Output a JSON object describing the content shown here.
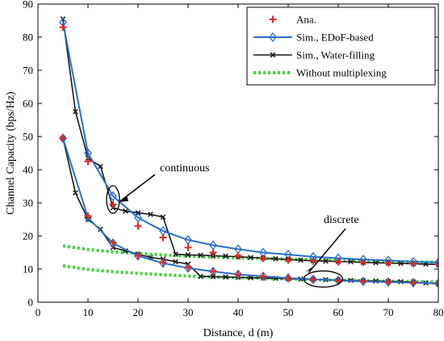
{
  "chart_data": {
    "type": "line",
    "xlabel": "Distance, d (m)",
    "ylabel": "Channel Capacity (bps/Hz)",
    "xlim": [
      0,
      80
    ],
    "ylim": [
      0,
      90
    ],
    "xticks": [
      0,
      10,
      20,
      30,
      40,
      50,
      60,
      70,
      80
    ],
    "yticks": [
      0,
      10,
      20,
      30,
      40,
      50,
      60,
      70,
      80,
      90
    ],
    "grid": false,
    "legend_position": "top-right",
    "legend": [
      "Ana.",
      "Sim., EDoF-based",
      "Sim., Water-filling",
      "Without multiplexing"
    ],
    "annotations": [
      {
        "text": "continuous",
        "target": [
          15,
          31
        ]
      },
      {
        "text": "discrete",
        "target": [
          57,
          7
        ]
      }
    ],
    "series": [
      {
        "name": "Ana.",
        "legend_index": 0,
        "style": "plus",
        "color": "#e8281e",
        "x": [
          5,
          10,
          15,
          20,
          25,
          30,
          35,
          40,
          45,
          50,
          55,
          60,
          65,
          70,
          75,
          80
        ],
        "y": [
          83,
          42.5,
          29.5,
          23,
          19.5,
          16.5,
          15,
          14,
          13.2,
          12.7,
          12.4,
          12.2,
          12,
          11.8,
          11.6,
          11.4
        ]
      },
      {
        "style": "plus",
        "color": "#e8281e",
        "x": [
          5,
          10,
          15,
          20,
          25,
          30,
          35,
          40,
          45,
          50,
          55,
          60,
          65,
          70,
          75,
          80
        ],
        "y": [
          49.5,
          26,
          18,
          14,
          12,
          10.5,
          9.3,
          8.4,
          7.8,
          7.2,
          6.8,
          6.5,
          6.3,
          6.1,
          5.9,
          5.7
        ]
      },
      {
        "name": "Sim., EDoF-based",
        "legend_index": 1,
        "style": "diamond-line",
        "color": "#2a6fc9",
        "x": [
          5,
          10,
          15,
          20,
          25,
          30,
          35,
          40,
          45,
          50,
          55,
          60,
          65,
          70,
          75,
          80
        ],
        "y": [
          84.5,
          45,
          32,
          25.5,
          21.5,
          18.8,
          17.2,
          16,
          15,
          14.4,
          13.7,
          13.3,
          12.9,
          12.6,
          12.2,
          12
        ]
      },
      {
        "style": "diamond-line",
        "color": "#2a6fc9",
        "x": [
          5,
          10,
          15,
          20,
          25,
          30,
          35,
          40,
          45,
          50,
          55,
          60,
          65,
          70,
          75,
          80
        ],
        "y": [
          49.5,
          25.5,
          17.8,
          14,
          11.8,
          10.3,
          9.3,
          8.4,
          7.8,
          7.3,
          6.9,
          6.6,
          6.3,
          6.1,
          5.9,
          5.7
        ]
      },
      {
        "name": "Sim., Water-filling",
        "legend_index": 2,
        "style": "x-line",
        "color": "#1a1a1a",
        "x": [
          5,
          7.5,
          10,
          12.5,
          15,
          17.5,
          20,
          22.5,
          25,
          27.5,
          30,
          32.5,
          35,
          37.5,
          40,
          42.5,
          45,
          47.5,
          50,
          52.5,
          55,
          57.5,
          60,
          62.5,
          65,
          67.5,
          70,
          72.5,
          75,
          77.5,
          80
        ],
        "y": [
          85.5,
          57.5,
          43.5,
          41,
          28.5,
          27.5,
          27,
          26.5,
          25.7,
          14.5,
          14.3,
          14.2,
          14,
          13.9,
          13.7,
          13.5,
          13.3,
          13.1,
          12.9,
          12.7,
          12.5,
          12.4,
          12.3,
          12.2,
          12,
          11.9,
          11.8,
          11.7,
          11.6,
          11.5,
          11.4
        ]
      },
      {
        "style": "x-line",
        "color": "#1a1a1a",
        "x": [
          5,
          7.5,
          10,
          12.5,
          15,
          17.5,
          20,
          22.5,
          25,
          27.5,
          30,
          32.5,
          35,
          37.5,
          40,
          42.5,
          45,
          47.5,
          50,
          52.5,
          55,
          57.5,
          60,
          62.5,
          65,
          67.5,
          70,
          72.5,
          75,
          77.5,
          80
        ],
        "y": [
          49.5,
          33,
          25,
          22,
          16.5,
          15.5,
          14.5,
          13.5,
          13,
          12.2,
          11.5,
          7.8,
          7.7,
          7.6,
          7.5,
          7.4,
          7.3,
          7.2,
          7.1,
          7,
          6.9,
          6.8,
          6.7,
          6.6,
          6.5,
          6.4,
          6.3,
          6.2,
          6.1,
          5.8,
          5.5
        ]
      },
      {
        "name": "Without multiplexing",
        "legend_index": 3,
        "style": "dotted",
        "color": "#3fd23f",
        "x": [
          5,
          10,
          15,
          20,
          25,
          30,
          35,
          40,
          45,
          50,
          55,
          60,
          65,
          70,
          75,
          80
        ],
        "y": [
          17,
          15.9,
          15.2,
          14.7,
          14.3,
          13.9,
          13.6,
          13.4,
          13.2,
          13,
          12.8,
          12.6,
          12.5,
          12.3,
          12.2,
          12.1
        ]
      },
      {
        "style": "dotted",
        "color": "#3fd23f",
        "x": [
          5,
          10,
          15,
          20,
          25,
          30,
          35,
          40,
          45,
          50,
          55,
          60,
          65,
          70,
          75,
          80
        ],
        "y": [
          11,
          9.9,
          9.2,
          8.7,
          8.3,
          7.9,
          7.6,
          7.4,
          7.2,
          7,
          6.8,
          6.6,
          6.5,
          6.3,
          6.2,
          6.1
        ]
      }
    ]
  }
}
